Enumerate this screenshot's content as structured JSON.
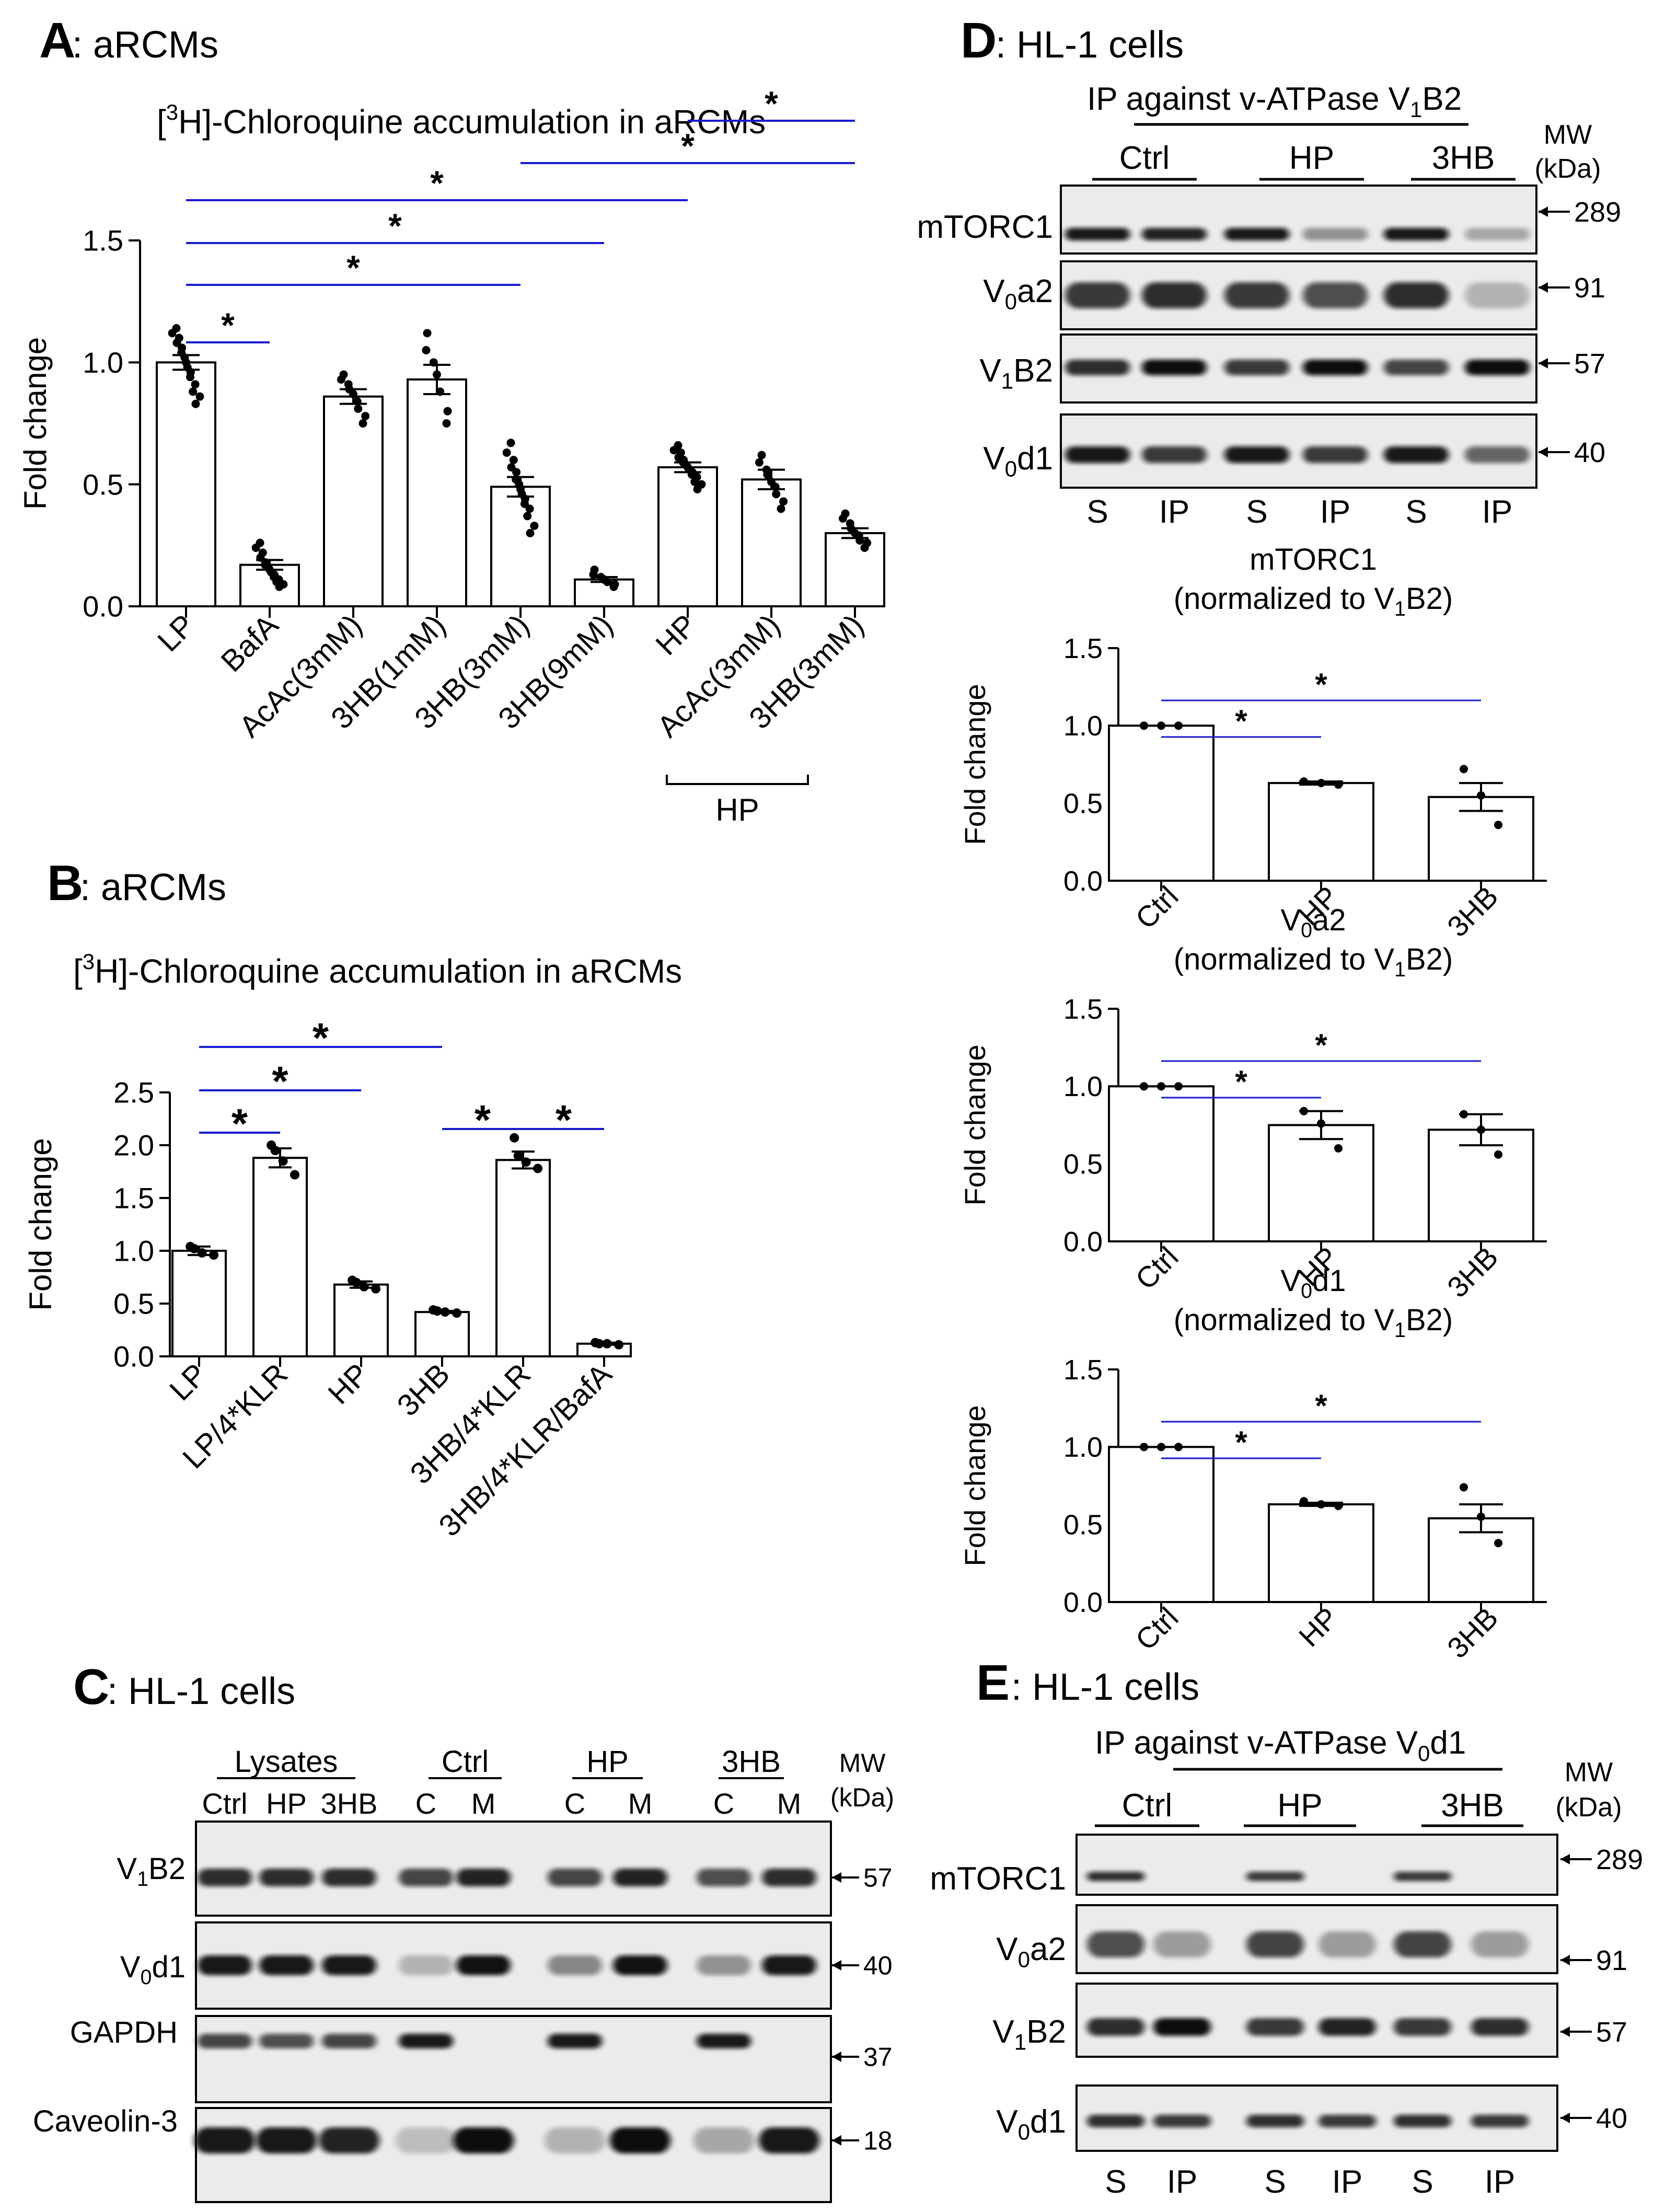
{
  "colors": {
    "sig": "#1a1acd",
    "bar": "#ffffff",
    "ink": "#000000"
  },
  "panelA": {
    "letter": "A",
    "label": ": aRCMs",
    "title_pre": "[",
    "title_sup": "3",
    "title_post": "H]-Chloroquine accumulation in aRCMs",
    "group_label": "HP",
    "chart_data": {
      "type": "bar",
      "ylabel": "Fold change",
      "ylim": [
        0,
        1.5
      ],
      "yticks": [
        "0.0",
        "0.5",
        "1.0",
        "1.5"
      ],
      "categories": [
        "LP",
        "BafA",
        "AcAc(3mM)",
        "3HB(1mM)",
        "3HB(3mM)",
        "3HB(9mM)",
        "HP",
        "AcAc(3mM)",
        "3HB(3mM)"
      ],
      "values": [
        1.0,
        0.17,
        0.86,
        0.93,
        0.49,
        0.11,
        0.57,
        0.52,
        0.3
      ],
      "sem": [
        0.03,
        0.02,
        0.03,
        0.06,
        0.04,
        0.01,
        0.02,
        0.04,
        0.02
      ],
      "points": [
        [
          1.14,
          1.12,
          1.1,
          1.08,
          1.06,
          1.04,
          1.02,
          1.0,
          0.98,
          0.96,
          0.94,
          0.91,
          0.88,
          0.86,
          0.83
        ],
        [
          0.26,
          0.24,
          0.22,
          0.2,
          0.18,
          0.17,
          0.16,
          0.15,
          0.14,
          0.13,
          0.12,
          0.11,
          0.1,
          0.09,
          0.08
        ],
        [
          0.95,
          0.93,
          0.91,
          0.89,
          0.87,
          0.84,
          0.81,
          0.78,
          0.75
        ],
        [
          1.12,
          1.05,
          1.0,
          0.95,
          0.88,
          0.8,
          0.75
        ],
        [
          0.67,
          0.63,
          0.6,
          0.57,
          0.55,
          0.52,
          0.5,
          0.48,
          0.46,
          0.44,
          0.42,
          0.4,
          0.37,
          0.33,
          0.3
        ],
        [
          0.15,
          0.13,
          0.12,
          0.11,
          0.1,
          0.09,
          0.08
        ],
        [
          0.66,
          0.64,
          0.63,
          0.61,
          0.6,
          0.59,
          0.58,
          0.57,
          0.56,
          0.55,
          0.54,
          0.53,
          0.51,
          0.5,
          0.48
        ],
        [
          0.62,
          0.59,
          0.56,
          0.54,
          0.51,
          0.49,
          0.46,
          0.43,
          0.4
        ],
        [
          0.38,
          0.36,
          0.34,
          0.32,
          0.3,
          0.29,
          0.27,
          0.26,
          0.24
        ]
      ],
      "significance": [
        {
          "from": 0,
          "to": 1,
          "label": "*"
        },
        {
          "from": 0,
          "to": 4,
          "label": "*"
        },
        {
          "from": 0,
          "to": 5,
          "label": "*"
        },
        {
          "from": 0,
          "to": 6,
          "label": "*"
        },
        {
          "from": 4,
          "to": 8,
          "label": "*"
        },
        {
          "from": 6,
          "to": 8,
          "label": "*"
        }
      ]
    }
  },
  "panelB": {
    "letter": "B",
    "label": ": aRCMs",
    "title_pre": "[",
    "title_sup": "3",
    "title_post": "H]-Chloroquine accumulation in aRCMs",
    "chart_data": {
      "type": "bar",
      "ylabel": "Fold change",
      "ylim": [
        0,
        2.5
      ],
      "yticks": [
        "0.0",
        "0.5",
        "1.0",
        "1.5",
        "2.0",
        "2.5"
      ],
      "categories": [
        "LP",
        "LP/4*KLR",
        "HP",
        "3HB",
        "3HB/4*KLR",
        "3HB/4*KLR/BafA"
      ],
      "values": [
        1.0,
        1.88,
        0.68,
        0.42,
        1.86,
        0.12
      ],
      "sem": [
        0.04,
        0.09,
        0.03,
        0.01,
        0.08,
        0.01
      ],
      "points": [
        [
          1.04,
          1.02,
          0.98,
          0.96
        ],
        [
          2.0,
          1.95,
          1.85,
          1.72
        ],
        [
          0.72,
          0.7,
          0.66,
          0.64
        ],
        [
          0.44,
          0.43,
          0.42,
          0.41
        ],
        [
          2.07,
          1.9,
          1.84,
          1.78
        ],
        [
          0.13,
          0.12,
          0.12,
          0.11
        ]
      ],
      "significance": [
        {
          "from": 0,
          "to": 1,
          "label": "*"
        },
        {
          "from": 0,
          "to": 2,
          "label": "*"
        },
        {
          "from": 0,
          "to": 3,
          "label": "*"
        },
        {
          "from": 3,
          "to": 4,
          "label": "*"
        },
        {
          "from": 4,
          "to": 5,
          "label": "*"
        }
      ]
    }
  },
  "panelC": {
    "letter": "C",
    "label": ": HL-1 cells",
    "groups": [
      "Lysates",
      "Ctrl",
      "HP",
      "3HB"
    ],
    "lanes": [
      "Ctrl",
      "HP",
      "3HB",
      "C",
      "M",
      "C",
      "M",
      "C",
      "M"
    ],
    "mw_header": [
      "MW",
      "(kDa)"
    ],
    "rows": [
      {
        "name": "V",
        "sub": "1",
        "post": "B2",
        "mw": "57"
      },
      {
        "name": "V",
        "sub": "0",
        "post": "d1",
        "mw": "40"
      },
      {
        "name": "GAPDH",
        "sub": "",
        "post": "",
        "mw": "37"
      },
      {
        "name": "Caveolin-3",
        "sub": "",
        "post": "",
        "mw": "18"
      }
    ]
  },
  "panelD": {
    "letter": "D",
    "label": ": HL-1 cells",
    "ip_title_pre": "IP against  v-ATPase V",
    "ip_title_sub": "1",
    "ip_title_post": "B2",
    "groups": [
      "Ctrl",
      "HP",
      "3HB"
    ],
    "lanes": [
      "S",
      "IP",
      "S",
      "IP",
      "S",
      "IP"
    ],
    "mw_header": [
      "MW",
      "(kDa)"
    ],
    "rows": [
      {
        "name": "mTORC1",
        "sub": "",
        "post": "",
        "mw": "289"
      },
      {
        "name": "V",
        "sub": "0",
        "post": "a2",
        "mw": "91"
      },
      {
        "name": "V",
        "sub": "1",
        "post": "B2",
        "mw": "57"
      },
      {
        "name": "V",
        "sub": "0",
        "post": "d1",
        "mw": "40"
      }
    ],
    "charts": [
      {
        "title_pre": "mTORC1",
        "title_sub": "",
        "title_post": "",
        "norm_pre": "(normalized to V",
        "norm_sub": "1",
        "norm_post": "B2)",
        "chart_data": {
          "type": "bar",
          "ylabel": "Fold change",
          "ylim": [
            0,
            1.5
          ],
          "yticks": [
            "0.0",
            "0.5",
            "1.0",
            "1.5"
          ],
          "categories": [
            "Ctrl",
            "HP",
            "3HB"
          ],
          "values": [
            1.0,
            0.63,
            0.54
          ],
          "sem": [
            0.0,
            0.01,
            0.09
          ],
          "points": [
            [
              1.0,
              1.0,
              1.0
            ],
            [
              0.64,
              0.63,
              0.62
            ],
            [
              0.72,
              0.55,
              0.36
            ]
          ],
          "significance": [
            {
              "from": 0,
              "to": 1,
              "label": "*"
            },
            {
              "from": 0,
              "to": 2,
              "label": "*"
            }
          ]
        }
      },
      {
        "title_pre": "V",
        "title_sub": "0",
        "title_post": "a2",
        "norm_pre": "(normalized to V",
        "norm_sub": "1",
        "norm_post": "B2)",
        "chart_data": {
          "type": "bar",
          "ylabel": "Fold change",
          "ylim": [
            0,
            1.5
          ],
          "yticks": [
            "0.0",
            "0.5",
            "1.0",
            "1.5"
          ],
          "categories": [
            "Ctrl",
            "HP",
            "3HB"
          ],
          "values": [
            1.0,
            0.75,
            0.72
          ],
          "sem": [
            0.0,
            0.09,
            0.1
          ],
          "points": [
            [
              1.0,
              1.0,
              1.0
            ],
            [
              0.84,
              0.76,
              0.6
            ],
            [
              0.82,
              0.72,
              0.56
            ]
          ],
          "significance": [
            {
              "from": 0,
              "to": 1,
              "label": "*"
            },
            {
              "from": 0,
              "to": 2,
              "label": "*"
            }
          ]
        }
      },
      {
        "title_pre": "V",
        "title_sub": "0",
        "title_post": "d1",
        "norm_pre": "(normalized to V",
        "norm_sub": "1",
        "norm_post": "B2)",
        "chart_data": {
          "type": "bar",
          "ylabel": "Fold change",
          "ylim": [
            0,
            1.5
          ],
          "yticks": [
            "0.0",
            "0.5",
            "1.0",
            "1.5"
          ],
          "categories": [
            "Ctrl",
            "HP",
            "3HB"
          ],
          "values": [
            1.0,
            0.63,
            0.54
          ],
          "sem": [
            0.0,
            0.01,
            0.09
          ],
          "points": [
            [
              1.0,
              1.0,
              1.0
            ],
            [
              0.65,
              0.63,
              0.62
            ],
            [
              0.74,
              0.55,
              0.38
            ]
          ],
          "significance": [
            {
              "from": 0,
              "to": 1,
              "label": "*"
            },
            {
              "from": 0,
              "to": 2,
              "label": "*"
            }
          ]
        }
      }
    ]
  },
  "panelE": {
    "letter": "E",
    "label": ": HL-1 cells",
    "ip_title_pre": "IP against v-ATPase V",
    "ip_title_sub": "0",
    "ip_title_post": "d1",
    "groups": [
      "Ctrl",
      "HP",
      "3HB"
    ],
    "lanes": [
      "S",
      "IP",
      "S",
      "IP",
      "S",
      "IP"
    ],
    "mw_header": [
      "MW",
      "(kDa)"
    ],
    "rows": [
      {
        "name": "mTORC1",
        "sub": "",
        "post": "",
        "mw": "289"
      },
      {
        "name": "V",
        "sub": "0",
        "post": "a2",
        "mw": "91"
      },
      {
        "name": "V",
        "sub": "1",
        "post": "B2",
        "mw": "57"
      },
      {
        "name": "V",
        "sub": "0",
        "post": "d1",
        "mw": "40"
      }
    ]
  }
}
